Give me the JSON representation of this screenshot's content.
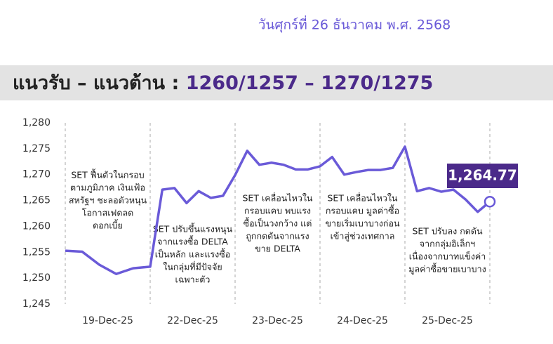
{
  "chart_data": {
    "type": "line",
    "date": "วันศุกร์ที่ 26 ธันวาคม พ.ศ. 2568",
    "title": "แนวรับ – แนวต้าน : ",
    "levels": "1260/1257 – 1270/1275",
    "color": "#6a5ad8",
    "ylim": [
      1245,
      1280
    ],
    "yticks": [
      {
        "value": 1245,
        "label": "1,245"
      },
      {
        "value": 1250,
        "label": "1,250"
      },
      {
        "value": 1255,
        "label": "1,255"
      },
      {
        "value": 1260,
        "label": "1,260"
      },
      {
        "value": 1265,
        "label": "1,265"
      },
      {
        "value": 1270,
        "label": "1,270"
      },
      {
        "value": 1275,
        "label": "1,275"
      },
      {
        "value": 1280,
        "label": "1,280"
      }
    ],
    "days": [
      {
        "label": "19-Dec-25",
        "values": [
          1255.3,
          1255.1,
          1252.6,
          1250.8,
          1251.9,
          1252.2
        ],
        "note": [
          "SET ฟื้นตัวในกรอบ",
          "ตามภูมิภาค เงินเฟ้อ",
          "สหรัฐฯ ชะลอตัวหนุน",
          "โอกาสเฟดลด",
          "ดอกเบี้ย"
        ]
      },
      {
        "label": "22-Dec-25",
        "values": [
          1267.1,
          1267.4,
          1264.5,
          1266.8,
          1265.5,
          1265.9,
          1269.9
        ],
        "note": [
          "SET ปรับขึ้นแรงหนุน",
          "จากแรงซื้อ DELTA",
          "เป็นหลัก และแรงซื้อ",
          "ในกลุ่มที่มีปัจจัย",
          "เฉพาะตัว"
        ]
      },
      {
        "label": "23-Dec-25",
        "values": [
          1274.6,
          1271.9,
          1272.3,
          1271.9,
          1271.0,
          1271.0,
          1271.6
        ],
        "note": [
          "SET เคลื่อนไหวใน",
          "กรอบแคบ พบแรง",
          "ซื้อเป็นวงกว้าง แต่",
          "ถูกกดดันจากแรง",
          "ขาย DELTA"
        ]
      },
      {
        "label": "24-Dec-25",
        "values": [
          1273.4,
          1270.0,
          1270.5,
          1270.9,
          1270.9,
          1271.3,
          1275.4
        ],
        "note": [
          "SET เคลื่อนไหวใน",
          "กรอบแคบ มูลค่าซื้อ",
          "ขายเริ่มเบาบางก่อน",
          "เข้าสู่ช่วงเทศกาล"
        ]
      },
      {
        "label": "25-Dec-25",
        "values": [
          1266.8,
          1267.4,
          1266.7,
          1267.1,
          1265.2,
          1262.8,
          1264.77
        ],
        "note": [
          "SET ปรับลง กดดัน",
          "จากกลุ่มอิเล็กฯ",
          "เนื่องจากบาทแข็งค่า",
          "มูลค่าซื้อขายเบาบาง"
        ]
      }
    ],
    "end_label": "1,264.77"
  }
}
